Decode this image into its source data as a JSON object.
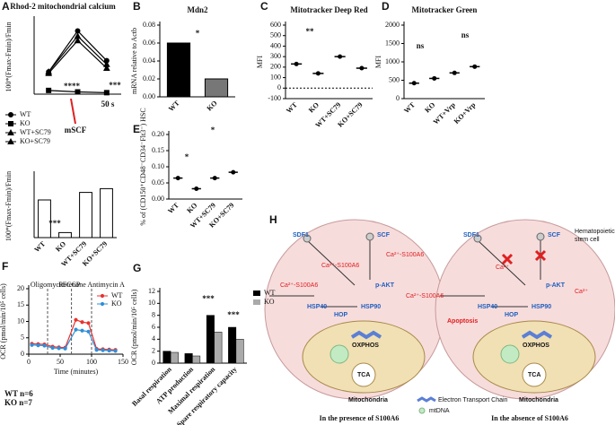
{
  "chart_data": [
    {
      "type": "line",
      "label": "A",
      "title": "Rhod-2 mitochondrial calcium",
      "ylabel": "100*(Fmax-Fmin)/Fmin",
      "ylim": [
        0,
        100
      ],
      "series": [
        {
          "name": "WT",
          "color": "#000000",
          "marker": "circle",
          "values": [
            30,
            85,
            45
          ]
        },
        {
          "name": "KO",
          "color": "#000000",
          "marker": "square",
          "values": [
            5,
            3,
            2
          ]
        },
        {
          "name": "WT+SC79",
          "color": "#000000",
          "marker": "triangle",
          "values": [
            30,
            78,
            40
          ]
        },
        {
          "name": "KO+SC79",
          "color": "#000000",
          "marker": "triangle",
          "values": [
            28,
            72,
            35
          ]
        }
      ],
      "annotations": [
        "****",
        "***",
        "mSCF",
        "50 s"
      ]
    },
    {
      "type": "bar",
      "ylabel": "100*(Fmax-Fmin)/Fmin",
      "categories": [
        "WT",
        "KO",
        "WT+SC79",
        "KO+SC79"
      ],
      "values": [
        60,
        8,
        72,
        78
      ],
      "ylim": [
        0,
        100
      ],
      "color": "#ffffff",
      "annotations": [
        "***"
      ]
    },
    {
      "type": "bar",
      "label": "B",
      "title": "Mdn2",
      "ylabel": "mRNA relative to Actb",
      "categories": [
        "WT",
        "KO"
      ],
      "values": [
        0.06,
        0.02
      ],
      "colors": [
        "#000000",
        "#777777"
      ],
      "ylim": [
        0,
        0.08
      ],
      "yticks": [
        {
          "value": 0,
          "label": "0.00"
        },
        0.02,
        0.04,
        0.06,
        0.08
      ],
      "annotations": [
        "*"
      ]
    },
    {
      "type": "dot",
      "label": "C",
      "title": "Mitotracker Deep Red",
      "ylabel": "MFI",
      "categories": [
        "WT",
        "KO",
        "WT+SC79",
        "KO+SC79"
      ],
      "values": [
        230,
        140,
        300,
        190
      ],
      "ylim": [
        -100,
        600
      ],
      "yticks": [
        -100,
        0,
        100,
        200,
        300,
        400,
        500,
        600
      ],
      "annotations": [
        "**"
      ]
    },
    {
      "type": "dot",
      "label": "D",
      "title": "Mitotracker Green",
      "ylabel": "MFI",
      "categories": [
        "WT",
        "KO",
        "WT+Vrp",
        "KO+Vrp"
      ],
      "values": [
        420,
        550,
        700,
        870
      ],
      "ylim": [
        0,
        2000
      ],
      "yticks": [
        0,
        500,
        1000,
        1500,
        2000
      ],
      "annotations": [
        "ns",
        "ns"
      ]
    },
    {
      "type": "dot",
      "label": "E",
      "ylabel": "% of (CD150⁺CD48⁻CD34⁻Flt3⁻) HSC",
      "categories": [
        "WT",
        "KO",
        "WT+SC79",
        "KO+SC79"
      ],
      "values": [
        0.065,
        0.032,
        0.065,
        0.083
      ],
      "ylim": [
        0,
        0.2
      ],
      "yticks": [
        {
          "value": 0,
          "label": "0.00"
        },
        0.05,
        {
          "value": 0.1,
          "label": "0.10"
        },
        0.15,
        {
          "value": 0.2,
          "label": "0.20"
        }
      ],
      "annotations": [
        "*",
        "*"
      ]
    },
    {
      "type": "line",
      "label": "F",
      "ylabel": "OCR (pmol/min/10⁵ cells)",
      "xlabel": "Time (minutes)",
      "x": [
        5,
        15,
        25,
        38,
        48,
        58,
        75,
        85,
        95,
        108,
        118,
        128,
        138
      ],
      "xlim": [
        0,
        150
      ],
      "xticks": [
        0,
        50,
        100,
        150
      ],
      "ylim": [
        0,
        20
      ],
      "yticks": [
        0,
        5,
        10,
        15,
        20
      ],
      "series": [
        {
          "name": "WT",
          "color": "#e8322e",
          "values": [
            3.2,
            3.1,
            3.0,
            2.3,
            2.1,
            2.0,
            10.5,
            9.8,
            9.5,
            1.6,
            1.5,
            1.4,
            1.3
          ]
        },
        {
          "name": "KO",
          "color": "#2f8fd8",
          "values": [
            2.8,
            2.7,
            2.6,
            1.9,
            1.8,
            1.7,
            7.5,
            7.2,
            6.9,
            1.3,
            1.2,
            1.1,
            1.0
          ]
        }
      ],
      "events": [
        {
          "x": 30,
          "label": "Oligomycin"
        },
        {
          "x": 68,
          "label": "FCCP"
        },
        {
          "x": 100,
          "label": "Rotenone Antimycin A"
        }
      ],
      "annotations": [
        "WT n=6",
        "KO n=7"
      ]
    },
    {
      "type": "grouped",
      "label": "G",
      "ylabel": "OCR (pmol/min/10⁵ cells)",
      "categories": [
        "Basal respiration",
        "ATP production",
        "Maximal respiration",
        "Spare respiratory capacity"
      ],
      "series": [
        {
          "name": "WT",
          "color": "#000000",
          "values": [
            2,
            1.6,
            8,
            6
          ]
        },
        {
          "name": "KO",
          "color": "#aaaaaa",
          "values": [
            1.8,
            1.2,
            5.2,
            4
          ]
        }
      ],
      "ylim": [
        0,
        12
      ],
      "yticks": [
        0,
        2,
        4,
        6,
        8,
        10,
        12
      ],
      "annotations": [
        "***",
        "***"
      ]
    }
  ],
  "diagram": {
    "label": "H",
    "cell": [
      "Hematopoietic",
      "stem cell"
    ],
    "left": {
      "title": "In the presence of S100A6",
      "ligands": [
        "SDF1",
        "SCF"
      ],
      "proteins": [
        "p-AKT",
        "HSP40",
        "HSP90",
        "HOP"
      ],
      "mito": [
        "OXPHOS",
        "TCA",
        "Mitochondria"
      ],
      "calcium": [
        "Ca²⁺-S100A6",
        "Ca²⁺-S100A6",
        "Ca²⁺-S100A6",
        "Ca²⁺-S100A6"
      ]
    },
    "right": {
      "title": "In the absence of S100A6",
      "ligands": [
        "SDF1",
        "SCF"
      ],
      "proteins": [
        "p-AKT",
        "HSP40",
        "HSP90",
        "HOP"
      ],
      "mito": [
        "OXPHOS",
        "TCA",
        "Mitochondria"
      ],
      "calcium": [
        "Ca²⁺",
        "Ca²⁺"
      ],
      "apoptosis": "Apoptosis"
    },
    "legend": [
      "Electron Transport Chain",
      "mtDNA"
    ]
  }
}
